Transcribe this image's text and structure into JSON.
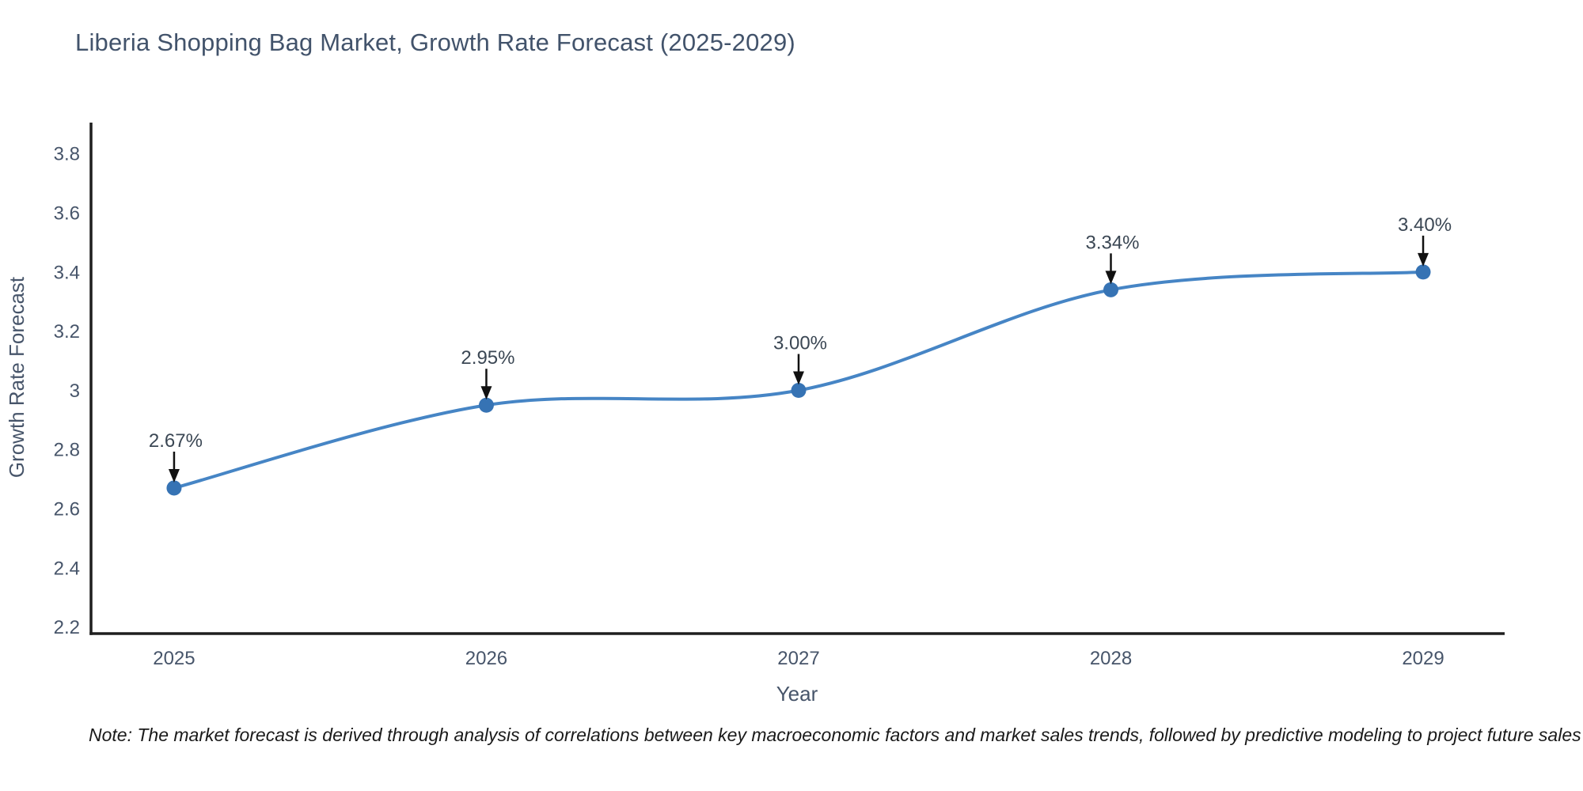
{
  "page": {
    "background": "#ffffff"
  },
  "chart_data": {
    "type": "line",
    "title": "Liberia Shopping Bag Market, Growth Rate Forecast (2025-2029)",
    "xlabel": "Year",
    "ylabel": "Growth Rate Forecast",
    "x": [
      2025,
      2026,
      2027,
      2028,
      2029
    ],
    "values": [
      2.67,
      2.95,
      3.0,
      3.34,
      3.4
    ],
    "point_labels": [
      "2.67%",
      "2.95%",
      "3.00%",
      "3.34%",
      "3.40%"
    ],
    "xtick_labels": [
      "2025",
      "2026",
      "2027",
      "2028",
      "2029"
    ],
    "ytick_values": [
      2.2,
      2.4,
      2.6,
      2.8,
      3,
      3.2,
      3.4,
      3.6,
      3.8
    ],
    "ytick_labels": [
      "2.2",
      "2.4",
      "2.6",
      "2.8",
      "3",
      "3.2",
      "3.4",
      "3.6",
      "3.8"
    ],
    "xlim": [
      2024.734,
      2029.261
    ],
    "ylim": [
      2.178,
      3.905
    ],
    "grid": false,
    "legend": "none",
    "line_shape": "spline",
    "annotations_have_arrows": true,
    "colors": {
      "line": "#4685c5",
      "marker": "#3673b4",
      "arrow": "#111111",
      "axis": "#1f1f1f",
      "title_text": "#42536b",
      "tick_text": "#47556a",
      "axis_label_text": "#47556a",
      "annotation_text": "#3b4754",
      "note_text": "#1a1a1a"
    }
  },
  "note": {
    "text": "Note: The market forecast is derived through analysis of correlations between key macroeconomic factors and market sales trends, followed by predictive modeling to project future sales"
  }
}
